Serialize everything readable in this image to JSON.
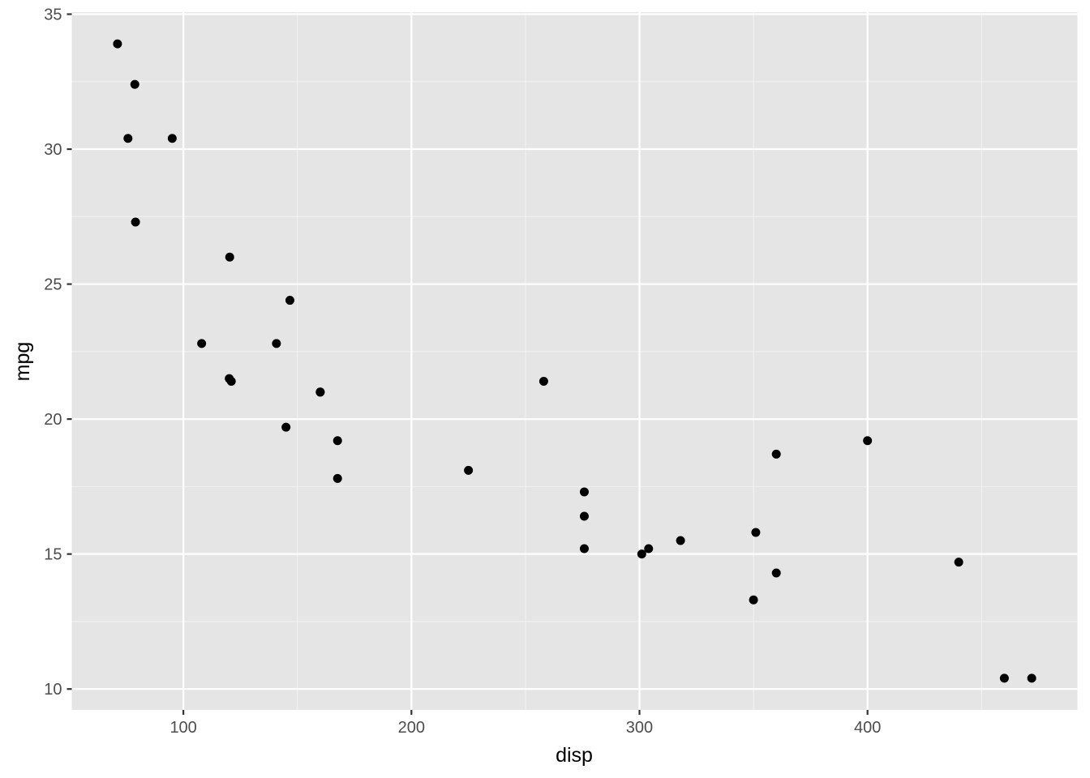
{
  "chart_data": {
    "type": "scatter",
    "xlabel": "disp",
    "ylabel": "mpg",
    "xlim": [
      51.05,
      492.05
    ],
    "ylim": [
      9.225,
      35.075
    ],
    "xticks": [
      100,
      200,
      300,
      400
    ],
    "yticks": [
      10,
      15,
      20,
      25,
      30,
      35
    ],
    "grid": true,
    "panel_background": "#e5e5e5",
    "point_color": "#000000",
    "points": [
      [
        160,
        21.0
      ],
      [
        160,
        21.0
      ],
      [
        108,
        22.8
      ],
      [
        258,
        21.4
      ],
      [
        360,
        18.7
      ],
      [
        225,
        18.1
      ],
      [
        360,
        14.3
      ],
      [
        146.7,
        24.4
      ],
      [
        140.8,
        22.8
      ],
      [
        167.6,
        19.2
      ],
      [
        167.6,
        17.8
      ],
      [
        275.8,
        16.4
      ],
      [
        275.8,
        17.3
      ],
      [
        275.8,
        15.2
      ],
      [
        472,
        10.4
      ],
      [
        460,
        10.4
      ],
      [
        440,
        14.7
      ],
      [
        78.7,
        32.4
      ],
      [
        75.7,
        30.4
      ],
      [
        71.1,
        33.9
      ],
      [
        120.1,
        21.5
      ],
      [
        318,
        15.5
      ],
      [
        304,
        15.2
      ],
      [
        350,
        13.3
      ],
      [
        400,
        19.2
      ],
      [
        79,
        27.3
      ],
      [
        120.3,
        26.0
      ],
      [
        95.1,
        30.4
      ],
      [
        351,
        15.8
      ],
      [
        145,
        19.7
      ],
      [
        301,
        15.0
      ],
      [
        121,
        21.4
      ]
    ]
  }
}
